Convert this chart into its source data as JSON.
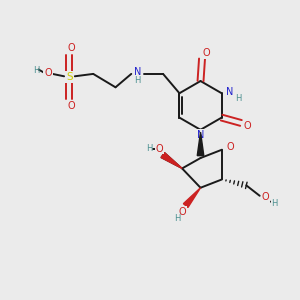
{
  "bg_color": "#ebebeb",
  "bond_color": "#1a1a1a",
  "N_color": "#2222cc",
  "O_color": "#cc2222",
  "S_color": "#cccc00",
  "H_color": "#4a8f8f",
  "figsize": [
    3.0,
    3.0
  ],
  "dpi": 100,
  "xlim": [
    0,
    10
  ],
  "ylim": [
    0,
    10
  ]
}
